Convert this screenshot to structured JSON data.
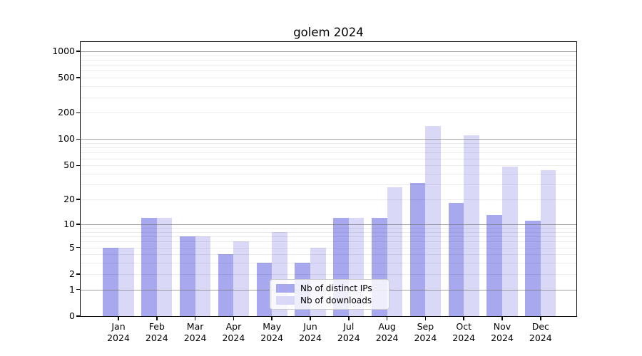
{
  "title": "golem 2024",
  "chart_data": {
    "type": "bar",
    "title": "golem 2024",
    "categories": [
      "Jan",
      "Feb",
      "Mar",
      "Apr",
      "May",
      "Jun",
      "Jul",
      "Aug",
      "Sep",
      "Oct",
      "Nov",
      "Dec"
    ],
    "x_year": "2024",
    "series": [
      {
        "name": "Nb of distinct IPs",
        "color": "#a8a8ef",
        "values": [
          5,
          12,
          7,
          4,
          3,
          3,
          12,
          12,
          31,
          18,
          13,
          11
        ]
      },
      {
        "name": "Nb of downloads",
        "color": "#d9d9f7",
        "values": [
          5,
          12,
          7,
          6,
          8,
          5,
          12,
          28,
          142,
          110,
          48,
          44
        ]
      }
    ],
    "yscale": "log10(1+y)",
    "ylim": [
      0,
      1270
    ],
    "yticks": [
      0,
      1,
      2,
      5,
      10,
      20,
      50,
      100,
      200,
      500,
      1000
    ],
    "major_gridlines": [
      1,
      10,
      100,
      1000
    ],
    "minor_gridlines": [
      2,
      3,
      4,
      5,
      6,
      7,
      8,
      9,
      20,
      30,
      40,
      50,
      60,
      70,
      80,
      90,
      200,
      300,
      400,
      500,
      600,
      700,
      800,
      900
    ],
    "grid": "on",
    "legend_position": "lower center"
  },
  "legend": {
    "items": [
      {
        "label": "Nb of distinct IPs"
      },
      {
        "label": "Nb of downloads"
      }
    ]
  }
}
